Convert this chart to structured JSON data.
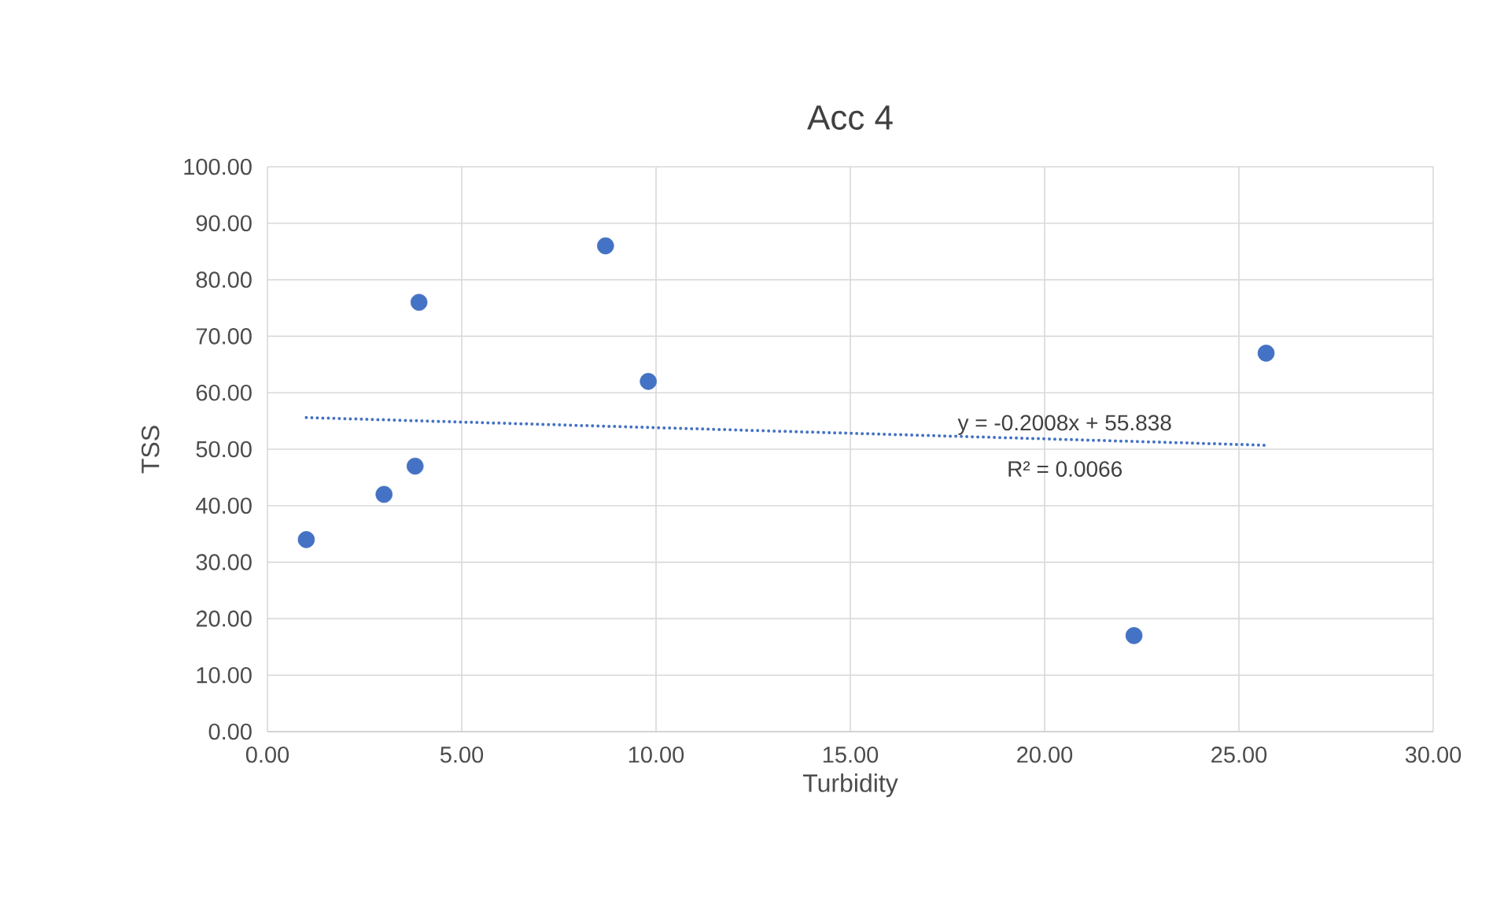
{
  "chart_data": {
    "type": "scatter",
    "title": "Acc 4",
    "xlabel": "Turbidity",
    "ylabel": "TSS",
    "series": [
      {
        "color": "#4472c4",
        "marker": "circle",
        "x": [
          1.0,
          3.0,
          3.8,
          3.9,
          8.7,
          9.8,
          22.3,
          25.7
        ],
        "values": [
          34,
          42,
          47,
          76,
          86,
          62,
          17,
          67
        ]
      },
      {
        "type": "line",
        "color": "#4472c4",
        "line_style": "dotted",
        "marker": "none",
        "x": [
          1.0,
          25.7
        ],
        "values": [
          55.6,
          50.7
        ]
      }
    ],
    "annotations": [
      "y = -0.2008x + 55.838",
      "R² = 0.0066"
    ],
    "xlim": [
      0,
      30
    ],
    "ylim": [
      0,
      100
    ],
    "xticks": [
      {
        "value": 0,
        "label": "0.00"
      },
      {
        "value": 5,
        "label": "5.00"
      },
      {
        "value": 10,
        "label": "10.00"
      },
      {
        "value": 15,
        "label": "15.00"
      },
      {
        "value": 20,
        "label": "20.00"
      },
      {
        "value": 25,
        "label": "25.00"
      },
      {
        "value": 30,
        "label": "30.00"
      }
    ],
    "yticks": [
      {
        "value": 0,
        "label": "0.00"
      },
      {
        "value": 10,
        "label": "10.00"
      },
      {
        "value": 20,
        "label": "20.00"
      },
      {
        "value": 30,
        "label": "30.00"
      },
      {
        "value": 40,
        "label": "40.00"
      },
      {
        "value": 50,
        "label": "50.00"
      },
      {
        "value": 60,
        "label": "60.00"
      },
      {
        "value": 70,
        "label": "70.00"
      },
      {
        "value": 80,
        "label": "80.00"
      },
      {
        "value": 90,
        "label": "90.00"
      },
      {
        "value": 100,
        "label": "100.00"
      }
    ],
    "grid": true,
    "legend": false
  }
}
